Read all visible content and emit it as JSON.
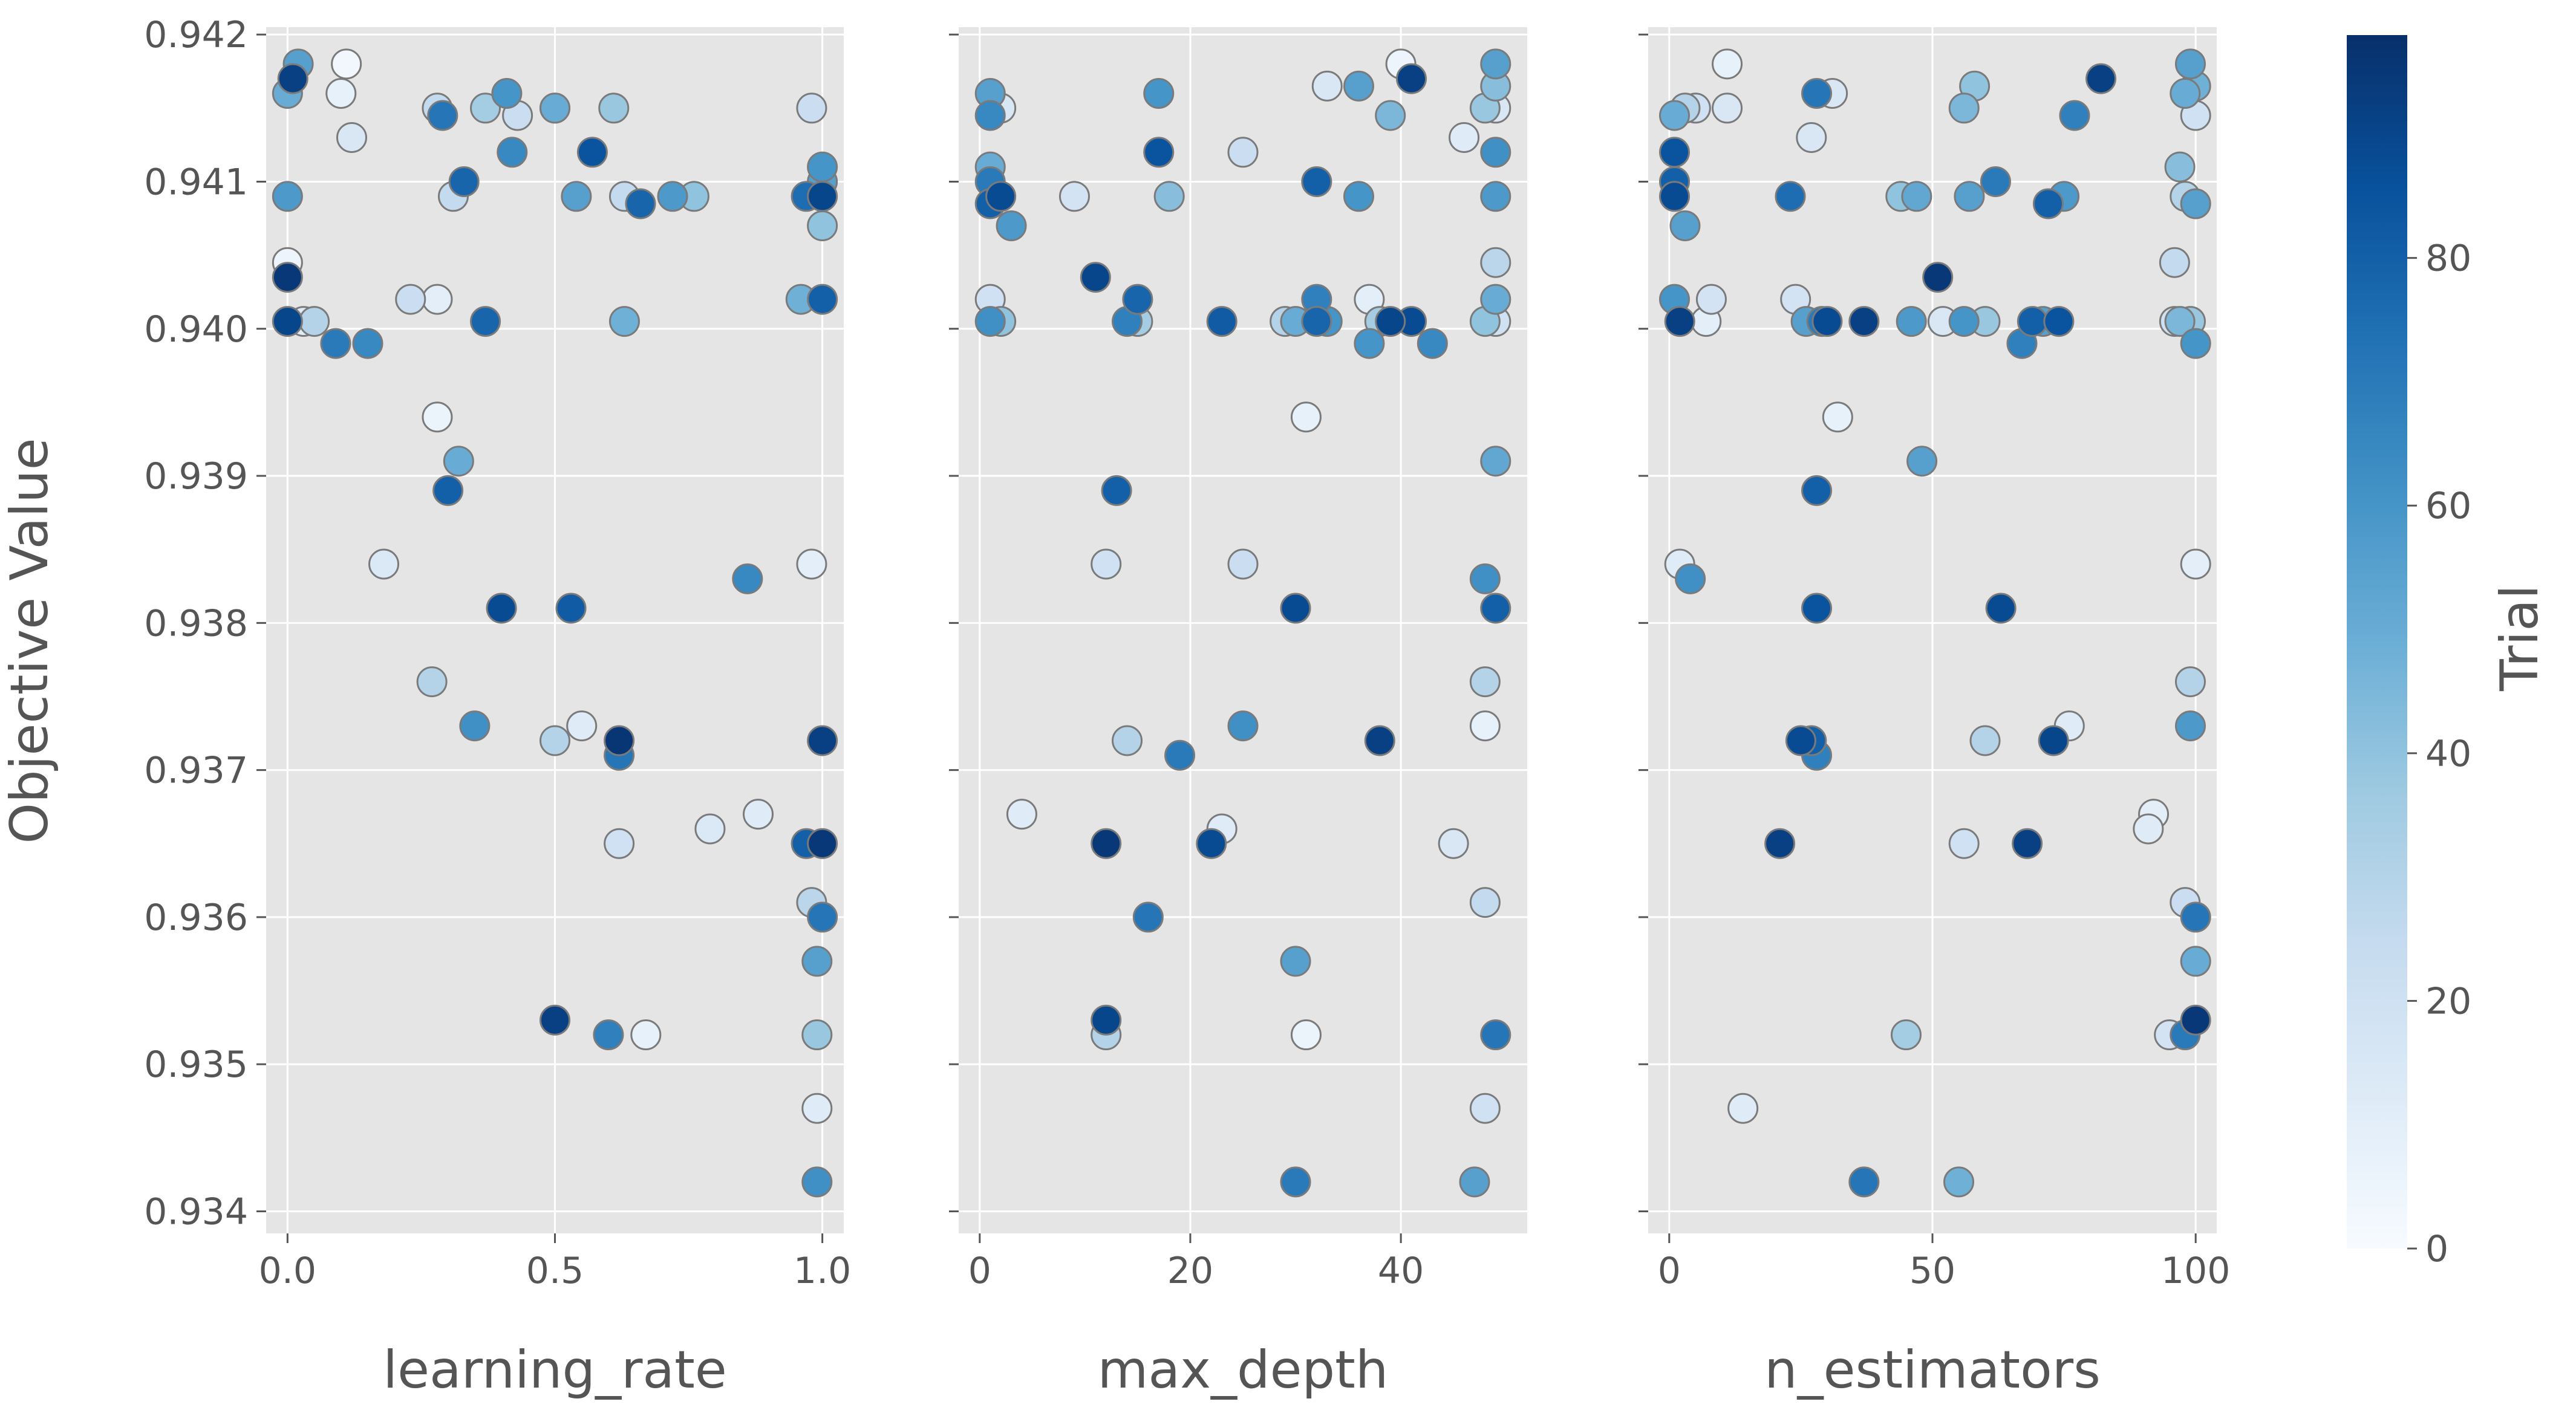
{
  "chart_data": {
    "type": "scatter",
    "title": "",
    "ylabel": "Objective Value",
    "ylim": [
      0.93385,
      0.94205
    ],
    "yticks": [
      0.934,
      0.935,
      0.936,
      0.937,
      0.938,
      0.939,
      0.94,
      0.941,
      0.942
    ],
    "ytick_labels": [
      "0.934",
      "0.935",
      "0.936",
      "0.937",
      "0.938",
      "0.939",
      "0.940",
      "0.941",
      "0.942"
    ],
    "colorbar": {
      "label": "Trial",
      "range": [
        0,
        98
      ],
      "colormap": "Blues",
      "ticks": [
        0,
        20,
        40,
        60,
        80
      ],
      "tick_labels": [
        "0",
        "20",
        "40",
        "60",
        "80"
      ],
      "colors": [
        "#f7fbff",
        "#deebf7",
        "#c6dbef",
        "#9ecae1",
        "#6baed6",
        "#4292c6",
        "#2171b5",
        "#08519c",
        "#08306b"
      ]
    },
    "panels": [
      {
        "xlabel": "learning_rate",
        "xlim": [
          -0.04,
          1.04
        ],
        "xticks": [
          0.0,
          0.5,
          1.0
        ],
        "xtick_labels": [
          "0.0",
          "0.5",
          "1.0"
        ],
        "points": [
          [
            0.0,
            0.9416,
            50
          ],
          [
            0.0,
            0.9409,
            58
          ],
          [
            0.0,
            0.94045,
            5
          ],
          [
            0.0,
            0.94035,
            95
          ],
          [
            0.0,
            0.94005,
            90
          ],
          [
            0.01,
            0.9417,
            92
          ],
          [
            0.02,
            0.9418,
            55
          ],
          [
            0.03,
            0.94005,
            12
          ],
          [
            0.05,
            0.94005,
            30
          ],
          [
            0.09,
            0.9399,
            70
          ],
          [
            0.1,
            0.9416,
            8
          ],
          [
            0.11,
            0.9418,
            3
          ],
          [
            0.12,
            0.9413,
            15
          ],
          [
            0.15,
            0.9399,
            65
          ],
          [
            0.18,
            0.9384,
            14
          ],
          [
            0.23,
            0.9402,
            22
          ],
          [
            0.27,
            0.9376,
            30
          ],
          [
            0.28,
            0.9402,
            10
          ],
          [
            0.28,
            0.9394,
            6
          ],
          [
            0.28,
            0.9415,
            25
          ],
          [
            0.29,
            0.94145,
            72
          ],
          [
            0.3,
            0.9389,
            80
          ],
          [
            0.31,
            0.9409,
            25
          ],
          [
            0.32,
            0.9391,
            50
          ],
          [
            0.33,
            0.941,
            78
          ],
          [
            0.35,
            0.9373,
            62
          ],
          [
            0.37,
            0.9415,
            35
          ],
          [
            0.37,
            0.94005,
            78
          ],
          [
            0.4,
            0.9381,
            88
          ],
          [
            0.41,
            0.9416,
            60
          ],
          [
            0.42,
            0.9412,
            65
          ],
          [
            0.43,
            0.94145,
            22
          ],
          [
            0.5,
            0.9415,
            20
          ],
          [
            0.5,
            0.9415,
            50
          ],
          [
            0.5,
            0.9372,
            30
          ],
          [
            0.5,
            0.9353,
            92
          ],
          [
            0.53,
            0.9381,
            82
          ],
          [
            0.54,
            0.9409,
            55
          ],
          [
            0.55,
            0.9373,
            12
          ],
          [
            0.57,
            0.9412,
            85
          ],
          [
            0.6,
            0.9352,
            68
          ],
          [
            0.61,
            0.9415,
            38
          ],
          [
            0.62,
            0.9365,
            20
          ],
          [
            0.62,
            0.9372,
            96
          ],
          [
            0.62,
            0.9371,
            72
          ],
          [
            0.63,
            0.9409,
            25
          ],
          [
            0.63,
            0.94005,
            48
          ],
          [
            0.66,
            0.94085,
            78
          ],
          [
            0.67,
            0.9352,
            8
          ],
          [
            0.72,
            0.9409,
            58
          ],
          [
            0.76,
            0.9409,
            40
          ],
          [
            0.79,
            0.9366,
            14
          ],
          [
            0.88,
            0.9367,
            12
          ],
          [
            0.86,
            0.9383,
            65
          ],
          [
            0.96,
            0.9402,
            48
          ],
          [
            0.97,
            0.9365,
            80
          ],
          [
            0.97,
            0.9409,
            75
          ],
          [
            0.98,
            0.9415,
            22
          ],
          [
            0.98,
            0.9384,
            10
          ],
          [
            0.98,
            0.9361,
            28
          ],
          [
            0.99,
            0.9357,
            55
          ],
          [
            0.99,
            0.9352,
            38
          ],
          [
            0.99,
            0.9347,
            12
          ],
          [
            0.99,
            0.9342,
            62
          ],
          [
            1.0,
            0.9411,
            60
          ],
          [
            1.0,
            0.941,
            55
          ],
          [
            1.0,
            0.9407,
            40
          ],
          [
            1.0,
            0.9409,
            90
          ],
          [
            1.0,
            0.9402,
            80
          ],
          [
            1.0,
            0.9372,
            92
          ],
          [
            1.0,
            0.9365,
            95
          ],
          [
            1.0,
            0.936,
            72
          ]
        ]
      },
      {
        "xlabel": "max_depth",
        "xlim": [
          -2,
          52
        ],
        "xticks": [
          0,
          20,
          40
        ],
        "xtick_labels": [
          "0",
          "20",
          "40"
        ],
        "points": [
          [
            1,
            0.9416,
            55
          ],
          [
            1,
            0.94145,
            65
          ],
          [
            1,
            0.9411,
            50
          ],
          [
            1,
            0.941,
            70
          ],
          [
            1,
            0.94085,
            80
          ],
          [
            1,
            0.9402,
            20
          ],
          [
            1,
            0.94005,
            62
          ],
          [
            2,
            0.9409,
            88
          ],
          [
            2,
            0.94005,
            40
          ],
          [
            2,
            0.9415,
            15
          ],
          [
            3,
            0.9407,
            58
          ],
          [
            4,
            0.9367,
            12
          ],
          [
            9,
            0.9409,
            18
          ],
          [
            11,
            0.94035,
            90
          ],
          [
            12,
            0.9384,
            20
          ],
          [
            12,
            0.9365,
            95
          ],
          [
            12,
            0.9353,
            90
          ],
          [
            12,
            0.9352,
            30
          ],
          [
            13,
            0.9389,
            80
          ],
          [
            14,
            0.94005,
            68
          ],
          [
            14,
            0.9372,
            30
          ],
          [
            15,
            0.9402,
            78
          ],
          [
            15,
            0.94005,
            35
          ],
          [
            16,
            0.936,
            72
          ],
          [
            17,
            0.9416,
            60
          ],
          [
            17,
            0.9412,
            85
          ],
          [
            18,
            0.9409,
            42
          ],
          [
            19,
            0.9371,
            70
          ],
          [
            22,
            0.9365,
            88
          ],
          [
            23,
            0.94005,
            82
          ],
          [
            23,
            0.9366,
            12
          ],
          [
            25,
            0.9412,
            22
          ],
          [
            25,
            0.9384,
            22
          ],
          [
            25,
            0.9373,
            62
          ],
          [
            29,
            0.94005,
            30
          ],
          [
            30,
            0.94005,
            50
          ],
          [
            30,
            0.9381,
            88
          ],
          [
            30,
            0.9357,
            55
          ],
          [
            30,
            0.9342,
            70
          ],
          [
            31,
            0.9394,
            8
          ],
          [
            31,
            0.9352,
            6
          ],
          [
            32,
            0.941,
            80
          ],
          [
            32,
            0.9402,
            68
          ],
          [
            32,
            0.94005,
            78
          ],
          [
            33,
            0.94165,
            15
          ],
          [
            33,
            0.94005,
            60
          ],
          [
            36,
            0.94165,
            55
          ],
          [
            36,
            0.9409,
            60
          ],
          [
            37,
            0.9402,
            10
          ],
          [
            37,
            0.9399,
            60
          ],
          [
            38,
            0.94005,
            35
          ],
          [
            38,
            0.9372,
            92
          ],
          [
            39,
            0.94145,
            45
          ],
          [
            39,
            0.94005,
            90
          ],
          [
            40,
            0.9418,
            5
          ],
          [
            41,
            0.9417,
            92
          ],
          [
            41,
            0.94005,
            88
          ],
          [
            43,
            0.9399,
            65
          ],
          [
            45,
            0.9365,
            15
          ],
          [
            46,
            0.9413,
            12
          ],
          [
            48,
            0.9415,
            38
          ],
          [
            48,
            0.94005,
            40
          ],
          [
            48,
            0.9383,
            62
          ],
          [
            48,
            0.9376,
            30
          ],
          [
            48,
            0.9373,
            8
          ],
          [
            48,
            0.9361,
            25
          ],
          [
            48,
            0.9347,
            20
          ],
          [
            47,
            0.9342,
            55
          ],
          [
            49,
            0.9418,
            55
          ],
          [
            49,
            0.94165,
            42
          ],
          [
            49,
            0.9415,
            15
          ],
          [
            49,
            0.9412,
            62
          ],
          [
            49,
            0.9409,
            58
          ],
          [
            49,
            0.94045,
            28
          ],
          [
            49,
            0.9402,
            50
          ],
          [
            49,
            0.94005,
            20
          ],
          [
            49,
            0.9391,
            52
          ],
          [
            49,
            0.9381,
            80
          ],
          [
            49,
            0.9352,
            72
          ]
        ]
      },
      {
        "xlabel": "n_estimators",
        "xlim": [
          -4,
          104
        ],
        "xticks": [
          0,
          50,
          100
        ],
        "xtick_labels": [
          "0",
          "50",
          "100"
        ],
        "points": [
          [
            1,
            0.94145,
            50
          ],
          [
            1,
            0.9412,
            85
          ],
          [
            1,
            0.941,
            80
          ],
          [
            1,
            0.9409,
            88
          ],
          [
            1,
            0.9402,
            60
          ],
          [
            2,
            0.9384,
            12
          ],
          [
            2,
            0.94005,
            92
          ],
          [
            3,
            0.9415,
            30
          ],
          [
            3,
            0.9407,
            55
          ],
          [
            4,
            0.9383,
            62
          ],
          [
            5,
            0.9415,
            20
          ],
          [
            7,
            0.94005,
            10
          ],
          [
            8,
            0.9402,
            18
          ],
          [
            11,
            0.9418,
            8
          ],
          [
            11,
            0.9415,
            15
          ],
          [
            14,
            0.9347,
            12
          ],
          [
            21,
            0.9365,
            92
          ],
          [
            23,
            0.9409,
            75
          ],
          [
            24,
            0.9402,
            18
          ],
          [
            25,
            0.9372,
            88
          ],
          [
            26,
            0.94005,
            55
          ],
          [
            27,
            0.9413,
            15
          ],
          [
            27,
            0.9372,
            80
          ],
          [
            28,
            0.9416,
            72
          ],
          [
            28,
            0.9389,
            80
          ],
          [
            28,
            0.9381,
            85
          ],
          [
            28,
            0.9371,
            68
          ],
          [
            29,
            0.94005,
            70
          ],
          [
            30,
            0.94005,
            88
          ],
          [
            31,
            0.9416,
            15
          ],
          [
            32,
            0.9394,
            8
          ],
          [
            37,
            0.94005,
            92
          ],
          [
            37,
            0.9342,
            72
          ],
          [
            44,
            0.9409,
            40
          ],
          [
            45,
            0.9352,
            35
          ],
          [
            46,
            0.94005,
            58
          ],
          [
            47,
            0.9409,
            52
          ],
          [
            48,
            0.9391,
            55
          ],
          [
            51,
            0.94035,
            95
          ],
          [
            52,
            0.94005,
            15
          ],
          [
            55,
            0.9342,
            48
          ],
          [
            56,
            0.9415,
            45
          ],
          [
            56,
            0.94005,
            60
          ],
          [
            56,
            0.9365,
            20
          ],
          [
            57,
            0.9409,
            55
          ],
          [
            58,
            0.94165,
            40
          ],
          [
            60,
            0.94005,
            38
          ],
          [
            60,
            0.9372,
            30
          ],
          [
            62,
            0.941,
            70
          ],
          [
            63,
            0.9381,
            88
          ],
          [
            67,
            0.9399,
            68
          ],
          [
            68,
            0.9365,
            92
          ],
          [
            69,
            0.94005,
            80
          ],
          [
            71,
            0.94005,
            55
          ],
          [
            72,
            0.94085,
            80
          ],
          [
            73,
            0.9372,
            90
          ],
          [
            74,
            0.94005,
            85
          ],
          [
            75,
            0.9409,
            58
          ],
          [
            76,
            0.9373,
            12
          ],
          [
            77,
            0.94145,
            68
          ],
          [
            82,
            0.9417,
            92
          ],
          [
            91,
            0.9366,
            12
          ],
          [
            92,
            0.9367,
            10
          ],
          [
            95,
            0.9352,
            18
          ],
          [
            96,
            0.94005,
            20
          ],
          [
            96,
            0.94045,
            25
          ],
          [
            97,
            0.9411,
            42
          ],
          [
            97,
            0.94005,
            45
          ],
          [
            98,
            0.9416,
            50
          ],
          [
            98,
            0.9409,
            30
          ],
          [
            98,
            0.9361,
            22
          ],
          [
            98,
            0.9352,
            70
          ],
          [
            99,
            0.9418,
            55
          ],
          [
            99,
            0.9376,
            30
          ],
          [
            99,
            0.9373,
            58
          ],
          [
            99,
            0.94005,
            38
          ],
          [
            100,
            0.94165,
            48
          ],
          [
            100,
            0.94145,
            20
          ],
          [
            100,
            0.94085,
            55
          ],
          [
            100,
            0.9399,
            60
          ],
          [
            100,
            0.9384,
            10
          ],
          [
            100,
            0.936,
            72
          ],
          [
            100,
            0.9357,
            50
          ],
          [
            100,
            0.9353,
            95
          ]
        ]
      }
    ]
  }
}
